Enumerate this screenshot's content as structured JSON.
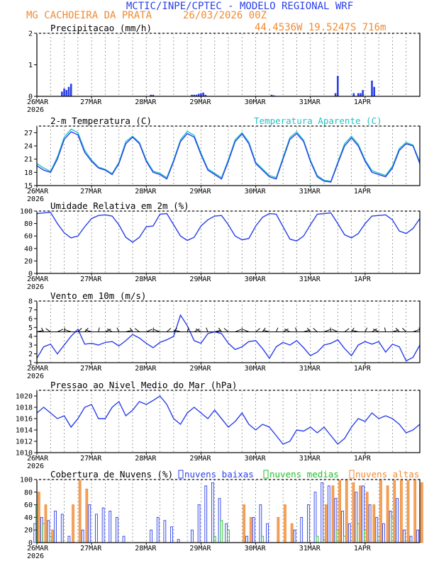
{
  "header": {
    "title": "MCTIC/INPE/CPTEC - MODELO REGIONAL WRF",
    "location": "MG CACHOEIRA DA PRATA",
    "run": "26/03/2026 00Z",
    "coords": "44.4536W 19.5247S 716m"
  },
  "colors": {
    "title": "#2a3fe8",
    "orange": "#f08a32",
    "blue": "#2a3fe8",
    "cyan": "#22c2c8",
    "green": "#1fbf2a",
    "black": "#000000"
  },
  "x_axis": {
    "labels": [
      "26MAR",
      "27MAR",
      "28MAR",
      "29MAR",
      "30MAR",
      "31MAR",
      "1APR"
    ],
    "year": "2026",
    "range_hours": [
      0,
      168
    ]
  },
  "chart_data": [
    {
      "type": "bar",
      "title": "Precipitacao (mm/h)",
      "ylim": [
        0,
        2
      ],
      "yticks": [
        "0",
        "1",
        "2"
      ],
      "x_hours": [
        11,
        12,
        13,
        14,
        15,
        50,
        51,
        68,
        69,
        70,
        71,
        72,
        73,
        74,
        103,
        104,
        131,
        132,
        139,
        141,
        142,
        143,
        147,
        148
      ],
      "values": [
        0.15,
        0.25,
        0.2,
        0.3,
        0.4,
        0.05,
        0.05,
        0.05,
        0.05,
        0.05,
        0.08,
        0.1,
        0.12,
        0.05,
        0.05,
        0.03,
        0.1,
        0.65,
        0.1,
        0.1,
        0.1,
        0.2,
        0.5,
        0.3
      ]
    },
    {
      "type": "line",
      "title": "2-m Temperatura (C)",
      "legend": "Temperatura Aparente (C)",
      "ylim": [
        15,
        28.5
      ],
      "yticks": [
        "15",
        "18",
        "21",
        "24",
        "27"
      ],
      "x": [
        0,
        3,
        6,
        9,
        12,
        15,
        18,
        21,
        24,
        27,
        30,
        33,
        36,
        39,
        42,
        45,
        48,
        51,
        54,
        57,
        60,
        63,
        66,
        69,
        72,
        75,
        78,
        81,
        84,
        87,
        90,
        93,
        96,
        99,
        102,
        105,
        108,
        111,
        114,
        117,
        120,
        123,
        126,
        129,
        132,
        135,
        138,
        141,
        144,
        147,
        150,
        153,
        156,
        159,
        162,
        165,
        168
      ],
      "series": [
        {
          "name": "2-m Temperatura",
          "values": [
            19.5,
            18.5,
            18.0,
            21.0,
            25.5,
            27.2,
            26.5,
            22.5,
            20.5,
            19.0,
            18.5,
            17.5,
            20.0,
            24.5,
            26.0,
            24.5,
            20.5,
            18.0,
            17.5,
            16.5,
            20.5,
            25.0,
            26.8,
            26.0,
            22.0,
            18.5,
            17.5,
            16.5,
            20.5,
            25.0,
            26.7,
            24.5,
            20.0,
            18.5,
            17.0,
            16.5,
            21.0,
            25.5,
            26.8,
            25.0,
            20.5,
            17.0,
            16.0,
            15.8,
            20.0,
            24.0,
            25.8,
            24.0,
            20.5,
            18.0,
            17.5,
            17.0,
            19.0,
            23.0,
            24.5,
            24.0,
            20.0
          ]
        },
        {
          "name": "Temperatura Aparente",
          "values": [
            20.0,
            19.0,
            18.2,
            21.5,
            26.0,
            27.8,
            27.0,
            23.0,
            20.8,
            19.2,
            18.7,
            17.7,
            20.3,
            25.0,
            26.2,
            24.8,
            20.8,
            18.3,
            17.8,
            16.8,
            20.8,
            25.4,
            27.3,
            26.4,
            22.4,
            18.8,
            17.8,
            16.8,
            20.9,
            25.4,
            27.0,
            24.9,
            20.3,
            18.8,
            17.3,
            16.8,
            21.4,
            25.9,
            27.2,
            25.3,
            20.8,
            17.3,
            16.2,
            16.0,
            20.3,
            24.5,
            26.2,
            24.4,
            20.8,
            18.4,
            17.8,
            17.3,
            19.4,
            23.4,
            24.8,
            24.2,
            20.4
          ]
        }
      ]
    },
    {
      "type": "line",
      "title": "Umidade Relativa em 2m (%)",
      "ylim": [
        0,
        100
      ],
      "yticks": [
        "0",
        "20",
        "40",
        "60",
        "80",
        "100"
      ],
      "x": [
        0,
        3,
        6,
        9,
        12,
        15,
        18,
        21,
        24,
        27,
        30,
        33,
        36,
        39,
        42,
        45,
        48,
        51,
        54,
        57,
        60,
        63,
        66,
        69,
        72,
        75,
        78,
        81,
        84,
        87,
        90,
        93,
        96,
        99,
        102,
        105,
        108,
        111,
        114,
        117,
        120,
        123,
        126,
        129,
        132,
        135,
        138,
        141,
        144,
        147,
        150,
        153,
        156,
        159,
        162,
        165,
        168
      ],
      "series": [
        {
          "name": "Umidade Relativa",
          "values": [
            96,
            97,
            98,
            80,
            65,
            57,
            60,
            75,
            88,
            93,
            94,
            92,
            78,
            58,
            50,
            58,
            75,
            76,
            95,
            96,
            78,
            60,
            53,
            58,
            76,
            86,
            92,
            93,
            78,
            60,
            54,
            56,
            76,
            90,
            96,
            95,
            75,
            55,
            52,
            60,
            78,
            95,
            96,
            97,
            80,
            62,
            57,
            64,
            80,
            92,
            93,
            94,
            86,
            68,
            64,
            72,
            88
          ]
        }
      ]
    },
    {
      "type": "line",
      "title": "Vento em 10m (m/s)",
      "ylim": [
        1,
        8
      ],
      "yticks": [
        "1",
        "2",
        "3",
        "4",
        "5",
        "6",
        "7",
        "8"
      ],
      "x": [
        0,
        3,
        6,
        9,
        12,
        15,
        18,
        21,
        24,
        27,
        30,
        33,
        36,
        39,
        42,
        45,
        48,
        51,
        54,
        57,
        60,
        63,
        66,
        69,
        72,
        75,
        78,
        81,
        84,
        87,
        90,
        93,
        96,
        99,
        102,
        105,
        108,
        111,
        114,
        117,
        120,
        123,
        126,
        129,
        132,
        135,
        138,
        141,
        144,
        147,
        150,
        153,
        156,
        159,
        162,
        165,
        168
      ],
      "series": [
        {
          "name": "Velocidade do Vento",
          "values": [
            1.5,
            2.8,
            3.1,
            2.0,
            3.0,
            4.0,
            4.8,
            3.1,
            3.2,
            3.0,
            3.3,
            3.4,
            2.9,
            3.5,
            4.2,
            3.8,
            3.2,
            2.7,
            3.3,
            3.6,
            4.0,
            6.4,
            5.2,
            3.5,
            3.2,
            4.3,
            4.5,
            4.3,
            3.2,
            2.5,
            2.8,
            3.4,
            3.5,
            2.6,
            1.5,
            2.8,
            3.3,
            3.0,
            3.5,
            2.7,
            1.8,
            2.2,
            3.0,
            3.2,
            3.6,
            2.6,
            1.8,
            3.0,
            3.4,
            3.1,
            3.4,
            2.2,
            3.1,
            2.8,
            1.2,
            1.6,
            3.0
          ]
        }
      ]
    },
    {
      "type": "line",
      "title": "Pressao ao Nivel Medio do Mar (hPa)",
      "ylim": [
        1010,
        1021
      ],
      "yticks": [
        "1010",
        "1012",
        "1014",
        "1016",
        "1018",
        "1020"
      ],
      "x": [
        0,
        3,
        6,
        9,
        12,
        15,
        18,
        21,
        24,
        27,
        30,
        33,
        36,
        39,
        42,
        45,
        48,
        51,
        54,
        57,
        60,
        63,
        66,
        69,
        72,
        75,
        78,
        81,
        84,
        87,
        90,
        93,
        96,
        99,
        102,
        105,
        108,
        111,
        114,
        117,
        120,
        123,
        126,
        129,
        132,
        135,
        138,
        141,
        144,
        147,
        150,
        153,
        156,
        159,
        162,
        165,
        168
      ],
      "series": [
        {
          "name": "Pressao",
          "values": [
            1017,
            1018,
            1017,
            1016,
            1016.5,
            1014.5,
            1016,
            1018,
            1018.5,
            1016,
            1016,
            1018,
            1019,
            1016.5,
            1017.5,
            1019,
            1018.5,
            1019.2,
            1020,
            1018.5,
            1016,
            1015,
            1017,
            1018,
            1017,
            1016,
            1017.5,
            1016,
            1014.5,
            1015.5,
            1017,
            1015,
            1014,
            1015,
            1014.5,
            1013,
            1011.5,
            1012,
            1014,
            1013.8,
            1014.5,
            1013.5,
            1014.5,
            1013,
            1011.5,
            1012.5,
            1014.5,
            1016,
            1015.5,
            1017,
            1016,
            1016.5,
            1016,
            1015,
            1013.5,
            1014,
            1015
          ]
        }
      ]
    },
    {
      "type": "bar",
      "title": "Cobertura de Nuvens (%)",
      "legend": [
        "nuvens baixas",
        "nuvens medias",
        "nuvens altas"
      ],
      "ylim": [
        0,
        100
      ],
      "yticks": [
        "0",
        "20",
        "40",
        "60",
        "80",
        "100"
      ],
      "x_hours": [
        0,
        3,
        6,
        9,
        12,
        15,
        18,
        21,
        24,
        27,
        30,
        33,
        36,
        39,
        42,
        45,
        48,
        51,
        54,
        57,
        60,
        63,
        66,
        69,
        72,
        75,
        78,
        81,
        84,
        87,
        90,
        93,
        96,
        99,
        102,
        105,
        108,
        111,
        114,
        117,
        120,
        123,
        126,
        129,
        132,
        135,
        138,
        141,
        144,
        147,
        150,
        153,
        156,
        159,
        162,
        165,
        168
      ],
      "series": [
        {
          "name": "nuvens baixas",
          "values": [
            30,
            40,
            35,
            50,
            45,
            10,
            0,
            20,
            60,
            45,
            55,
            50,
            40,
            10,
            0,
            0,
            0,
            20,
            40,
            35,
            25,
            5,
            0,
            20,
            60,
            90,
            95,
            70,
            30,
            0,
            0,
            10,
            40,
            60,
            30,
            0,
            0,
            0,
            20,
            40,
            60,
            80,
            95,
            90,
            70,
            50,
            30,
            80,
            90,
            60,
            40,
            30,
            50,
            70,
            20,
            10,
            20
          ]
        },
        {
          "name": "nuvens medias",
          "values": [
            60,
            30,
            10,
            0,
            0,
            0,
            0,
            0,
            0,
            0,
            0,
            0,
            0,
            0,
            0,
            0,
            0,
            0,
            0,
            0,
            0,
            0,
            0,
            0,
            0,
            0,
            10,
            35,
            20,
            0,
            0,
            0,
            0,
            10,
            0,
            0,
            0,
            0,
            0,
            0,
            0,
            10,
            5,
            0,
            20,
            10,
            0,
            30,
            20,
            0,
            10,
            0,
            40,
            0,
            0,
            0,
            0
          ]
        },
        {
          "name": "nuvens altas",
          "values": [
            80,
            60,
            20,
            0,
            0,
            60,
            100,
            85,
            0,
            0,
            0,
            0,
            0,
            0,
            0,
            0,
            0,
            0,
            0,
            0,
            0,
            0,
            0,
            0,
            0,
            0,
            0,
            0,
            0,
            0,
            60,
            40,
            0,
            0,
            0,
            40,
            60,
            30,
            0,
            0,
            0,
            0,
            60,
            90,
            100,
            100,
            95,
            90,
            80,
            60,
            100,
            90,
            100,
            100,
            100,
            100,
            95
          ]
        }
      ]
    }
  ]
}
